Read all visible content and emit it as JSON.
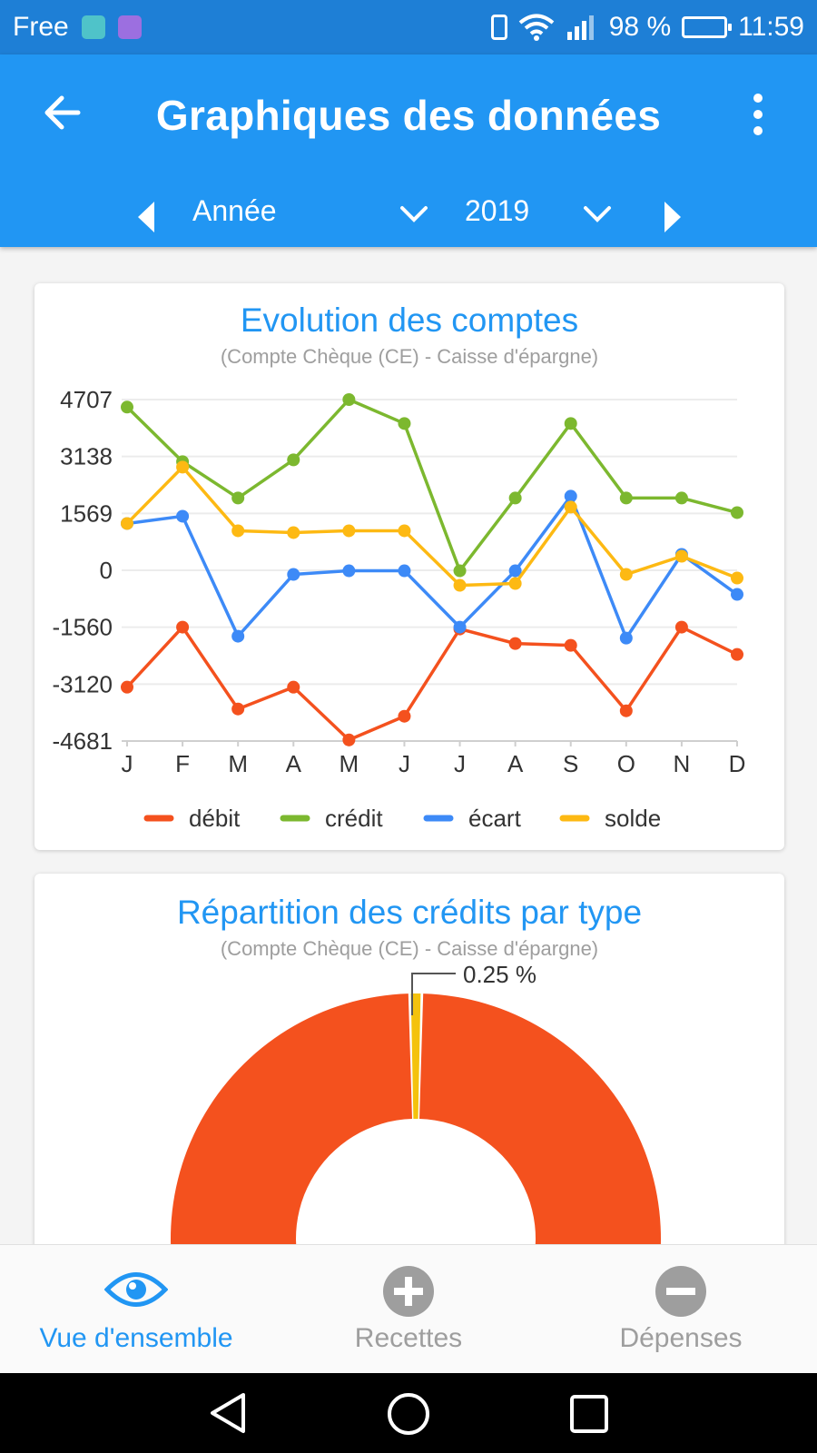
{
  "status_bar": {
    "carrier": "Free",
    "battery": "98 %",
    "time": "11:59"
  },
  "app_bar": {
    "title": "Graphiques des données",
    "period_type": "Année",
    "year": "2019"
  },
  "colors": {
    "primary": "#2196f3",
    "status_bar": "#1e7fd6",
    "debit": "#f4511e",
    "credit": "#7cb82f",
    "ecart": "#3d8af7",
    "solde": "#fdb913",
    "donut_main": "#f4511e",
    "donut_small": "#f4c20d",
    "inactive": "#9e9e9e"
  },
  "cards": {
    "evolution": {
      "title": "Evolution des comptes",
      "subtitle": "(Compte Chèque (CE) - Caisse d'épargne)"
    },
    "repartition": {
      "title": "Répartition des crédits par type",
      "subtitle": "(Compte Chèque (CE) - Caisse d'épargne)",
      "small_slice_label": "0.25 %"
    }
  },
  "chart_data": [
    {
      "type": "line",
      "title": "Evolution des comptes",
      "subtitle": "(Compte Chèque (CE) - Caisse d'épargne)",
      "categories": [
        "J",
        "F",
        "M",
        "A",
        "M",
        "J",
        "J",
        "A",
        "S",
        "O",
        "N",
        "D"
      ],
      "y_ticks": [
        "4707",
        "3138",
        "1569",
        "0",
        "-1560",
        "-3120",
        "-4681"
      ],
      "ylim": [
        -4681,
        4707
      ],
      "grid": true,
      "legend_position": "bottom",
      "series": [
        {
          "name": "débit",
          "color": "#f4511e",
          "values": [
            -3200,
            -1550,
            -3800,
            -3200,
            -4650,
            -4000,
            -1600,
            -2000,
            -2050,
            -3850,
            -1550,
            -2300
          ]
        },
        {
          "name": "crédit",
          "color": "#7cb82f",
          "values": [
            4500,
            3000,
            2000,
            3050,
            4707,
            4050,
            0,
            2000,
            4050,
            2000,
            2000,
            1600
          ]
        },
        {
          "name": "écart",
          "color": "#3d8af7",
          "values": [
            1300,
            1500,
            -1800,
            -100,
            0,
            0,
            -1550,
            0,
            2050,
            -1850,
            450,
            -650
          ]
        },
        {
          "name": "solde",
          "color": "#fdb913",
          "values": [
            1300,
            2850,
            1100,
            1050,
            1100,
            1100,
            -400,
            -350,
            1750,
            -100,
            400,
            -200
          ]
        }
      ]
    },
    {
      "type": "pie",
      "title": "Répartition des crédits par type",
      "subtitle": "(Compte Chèque (CE) - Caisse d'épargne)",
      "donut": true,
      "slices": [
        {
          "label": "",
          "value": 99.75,
          "color": "#f4511e"
        },
        {
          "label": "0.25 %",
          "value": 0.25,
          "color": "#f4c20d"
        }
      ]
    }
  ],
  "bottom_nav": {
    "items": [
      {
        "label": "Vue d'ensemble",
        "icon": "eye-icon",
        "active": true
      },
      {
        "label": "Recettes",
        "icon": "plus-circle-icon",
        "active": false
      },
      {
        "label": "Dépenses",
        "icon": "minus-circle-icon",
        "active": false
      }
    ]
  }
}
